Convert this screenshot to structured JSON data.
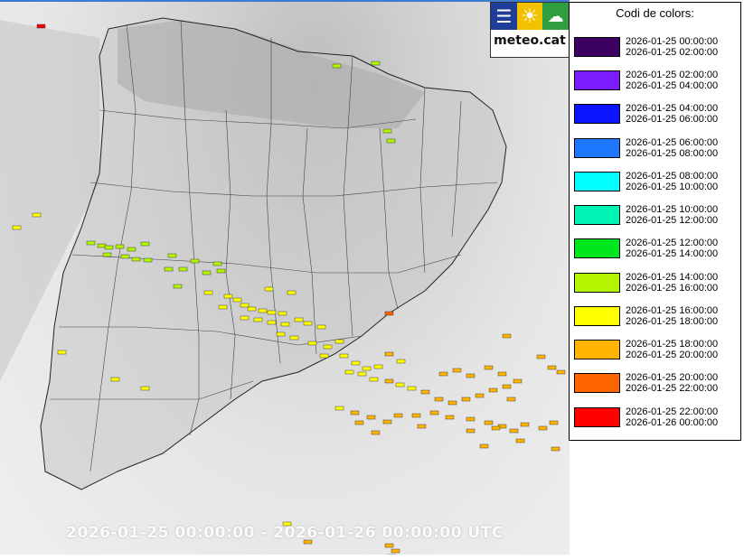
{
  "map": {
    "timestamp": "2026-01-25 00:00:00 - 2026-01-26 00:00:00 UTC"
  },
  "logo": {
    "text": "meteo.cat",
    "icons": [
      "menu-icon",
      "sun-icon",
      "cloud-icon"
    ]
  },
  "legend": {
    "title": "Codi de colors:",
    "items": [
      {
        "color": "#3d0063",
        "start": "2026-01-25 00:00:00",
        "end": "2026-01-25 02:00:00"
      },
      {
        "color": "#7b1cff",
        "start": "2026-01-25 02:00:00",
        "end": "2026-01-25 04:00:00"
      },
      {
        "color": "#0a14ff",
        "start": "2026-01-25 04:00:00",
        "end": "2026-01-25 06:00:00"
      },
      {
        "color": "#1e78ff",
        "start": "2026-01-25 06:00:00",
        "end": "2026-01-25 08:00:00"
      },
      {
        "color": "#00ffff",
        "start": "2026-01-25 08:00:00",
        "end": "2026-01-25 10:00:00"
      },
      {
        "color": "#00f5b4",
        "start": "2026-01-25 10:00:00",
        "end": "2026-01-25 12:00:00"
      },
      {
        "color": "#00e61e",
        "start": "2026-01-25 12:00:00",
        "end": "2026-01-25 14:00:00"
      },
      {
        "color": "#b4f500",
        "start": "2026-01-25 14:00:00",
        "end": "2026-01-25 16:00:00"
      },
      {
        "color": "#ffff00",
        "start": "2026-01-25 16:00:00",
        "end": "2026-01-25 18:00:00"
      },
      {
        "color": "#ffb400",
        "start": "2026-01-25 18:00:00",
        "end": "2026-01-25 20:00:00"
      },
      {
        "color": "#ff6400",
        "start": "2026-01-25 20:00:00",
        "end": "2026-01-25 22:00:00"
      },
      {
        "color": "#ff0000",
        "start": "2026-01-25 22:00:00",
        "end": "2026-01-26 00:00:00"
      }
    ]
  }
}
